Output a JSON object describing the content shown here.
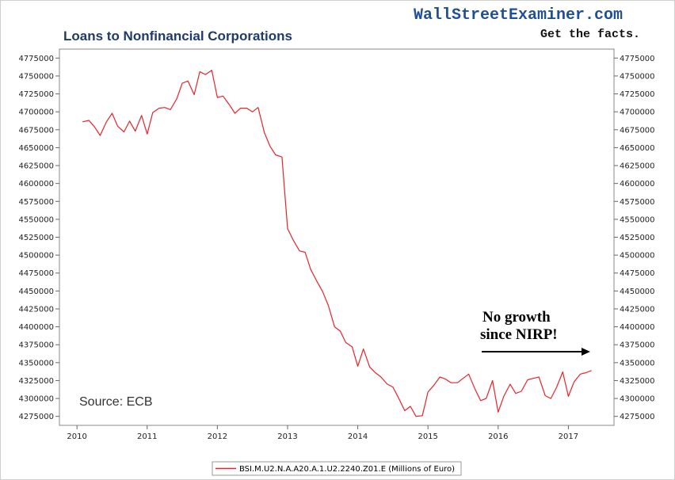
{
  "brand": {
    "name": "WallStreetExaminer.com",
    "tagline": "Get the facts."
  },
  "chart_data": {
    "type": "line",
    "title": "Loans to Nonfinancial Corporations",
    "xlabel": "",
    "ylabel": "",
    "xlim": [
      2009.75,
      2017.65
    ],
    "ylim": [
      4262500,
      4787500
    ],
    "x_ticks": [
      "2010",
      "2011",
      "2012",
      "2013",
      "2014",
      "2015",
      "2016",
      "2017"
    ],
    "y_ticks": [
      "4275000",
      "4300000",
      "4325000",
      "4350000",
      "4375000",
      "4400000",
      "4425000",
      "4450000",
      "4475000",
      "4500000",
      "4525000",
      "4550000",
      "4575000",
      "4600000",
      "4625000",
      "4650000",
      "4675000",
      "4700000",
      "4725000",
      "4750000",
      "4775000"
    ],
    "grid": false,
    "color": "#e8232a",
    "series": [
      {
        "name": "BSI.M.U2.N.A.A20.A.1.U2.2240.Z01.E (Millions of Euro)",
        "points": [
          [
            2010.08,
            4686000
          ],
          [
            2010.17,
            4688000
          ],
          [
            2010.25,
            4679000
          ],
          [
            2010.33,
            4667000
          ],
          [
            2010.42,
            4686000
          ],
          [
            2010.5,
            4698000
          ],
          [
            2010.58,
            4680000
          ],
          [
            2010.67,
            4672000
          ],
          [
            2010.75,
            4687000
          ],
          [
            2010.83,
            4673000
          ],
          [
            2010.92,
            4695000
          ],
          [
            2011.0,
            4669000
          ],
          [
            2011.08,
            4699000
          ],
          [
            2011.17,
            4705000
          ],
          [
            2011.25,
            4706000
          ],
          [
            2011.33,
            4703000
          ],
          [
            2011.42,
            4718000
          ],
          [
            2011.5,
            4740000
          ],
          [
            2011.58,
            4743000
          ],
          [
            2011.67,
            4724000
          ],
          [
            2011.75,
            4756000
          ],
          [
            2011.83,
            4752000
          ],
          [
            2011.92,
            4758000
          ],
          [
            2012.0,
            4720000
          ],
          [
            2012.08,
            4722000
          ],
          [
            2012.17,
            4710000
          ],
          [
            2012.25,
            4698000
          ],
          [
            2012.33,
            4705000
          ],
          [
            2012.42,
            4705000
          ],
          [
            2012.5,
            4700000
          ],
          [
            2012.58,
            4706000
          ],
          [
            2012.67,
            4671000
          ],
          [
            2012.75,
            4652000
          ],
          [
            2012.83,
            4640000
          ],
          [
            2012.92,
            4637000
          ],
          [
            2013.0,
            4537000
          ],
          [
            2013.08,
            4521000
          ],
          [
            2013.17,
            4506000
          ],
          [
            2013.25,
            4504000
          ],
          [
            2013.33,
            4480000
          ],
          [
            2013.42,
            4463000
          ],
          [
            2013.5,
            4449000
          ],
          [
            2013.58,
            4430000
          ],
          [
            2013.67,
            4400000
          ],
          [
            2013.75,
            4394000
          ],
          [
            2013.83,
            4378000
          ],
          [
            2013.92,
            4372000
          ],
          [
            2014.0,
            4345000
          ],
          [
            2014.08,
            4369000
          ],
          [
            2014.17,
            4344000
          ],
          [
            2014.25,
            4336000
          ],
          [
            2014.33,
            4330000
          ],
          [
            2014.42,
            4320000
          ],
          [
            2014.5,
            4316000
          ],
          [
            2014.58,
            4301000
          ],
          [
            2014.67,
            4283000
          ],
          [
            2014.75,
            4289000
          ],
          [
            2014.83,
            4275000
          ],
          [
            2014.92,
            4276000
          ],
          [
            2015.0,
            4309000
          ],
          [
            2015.08,
            4318000
          ],
          [
            2015.17,
            4330000
          ],
          [
            2015.25,
            4327000
          ],
          [
            2015.33,
            4322000
          ],
          [
            2015.42,
            4322000
          ],
          [
            2015.5,
            4328000
          ],
          [
            2015.58,
            4334000
          ],
          [
            2015.67,
            4313000
          ],
          [
            2015.75,
            4297000
          ],
          [
            2015.83,
            4300000
          ],
          [
            2015.92,
            4325000
          ],
          [
            2016.0,
            4281000
          ],
          [
            2016.08,
            4303000
          ],
          [
            2016.17,
            4320000
          ],
          [
            2016.25,
            4307000
          ],
          [
            2016.33,
            4310000
          ],
          [
            2016.42,
            4326000
          ],
          [
            2016.5,
            4328000
          ],
          [
            2016.58,
            4330000
          ],
          [
            2016.67,
            4304000
          ],
          [
            2016.75,
            4300000
          ],
          [
            2016.83,
            4315000
          ],
          [
            2016.92,
            4337000
          ],
          [
            2017.0,
            4303000
          ],
          [
            2017.08,
            4323000
          ],
          [
            2017.17,
            4334000
          ],
          [
            2017.25,
            4336000
          ],
          [
            2017.33,
            4339000
          ]
        ]
      }
    ]
  },
  "annotation": {
    "line1": "No growth",
    "line2": "since NIRP!"
  },
  "source": "Source: ECB",
  "legend": {
    "label": "BSI.M.U2.N.A.A20.A.1.U2.2240.Z01.E (Millions of Euro)"
  }
}
